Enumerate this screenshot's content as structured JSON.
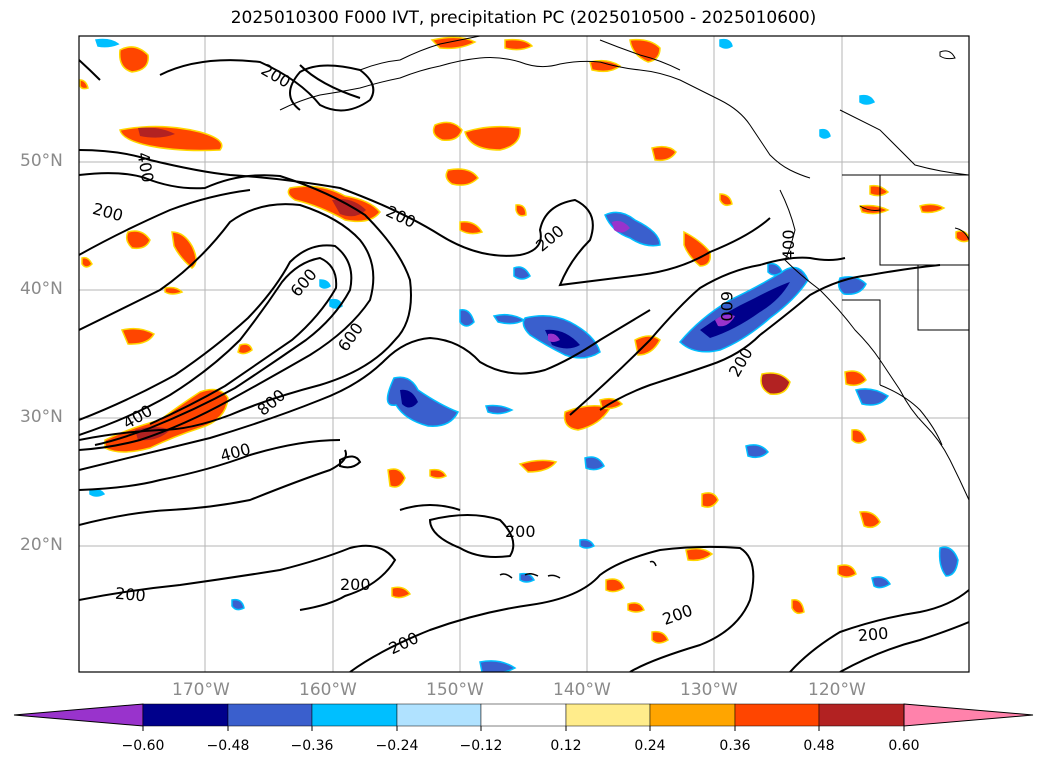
{
  "title": "2025010300 F000 IVT, precipitation PC (2025010500 - 2025010600)",
  "map": {
    "lat_labels": [
      "50°N",
      "40°N",
      "30°N",
      "20°N"
    ],
    "lon_labels": [
      "170°W",
      "160°W",
      "150°W",
      "140°W",
      "130°W",
      "120°W"
    ],
    "contour_labels": [
      "200",
      "400",
      "600",
      "800"
    ],
    "ivt_label_200": "200",
    "ivt_label_400": "400",
    "ivt_label_600": "600",
    "ivt_label_800": "800"
  },
  "colorbar": {
    "tick_labels": [
      "−0.60",
      "−0.48",
      "−0.36",
      "−0.24",
      "−0.12",
      "0.12",
      "0.24",
      "0.36",
      "0.48",
      "0.60"
    ],
    "colors": [
      "#9933cc",
      "#00008b",
      "#3a5fcd",
      "#00bfff",
      "#b0e2ff",
      "#ffffff",
      "#ffec8b",
      "#ffa500",
      "#ff4500",
      "#b22222",
      "#ff82ab"
    ]
  }
}
